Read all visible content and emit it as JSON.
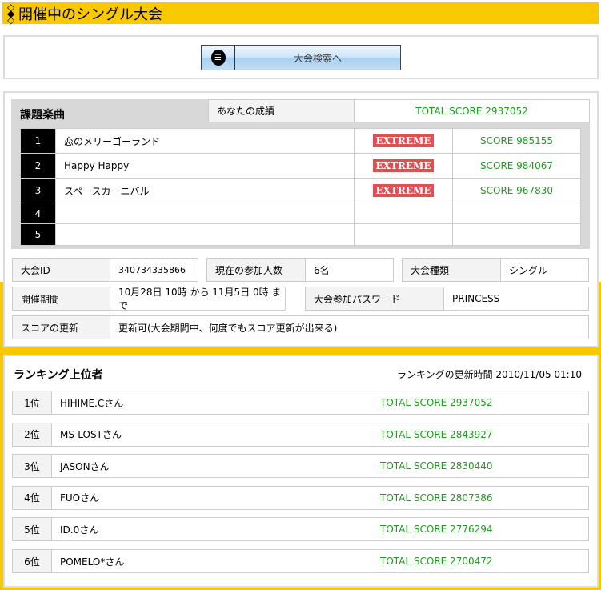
{
  "header": {
    "title": "開催中のシングル大会",
    "icon": "diamond-bullet-icon"
  },
  "search_button": {
    "label": "大会検索へ",
    "icon": "document-icon"
  },
  "songs": {
    "heading": "課題楽曲",
    "your_result_label": "あなたの成績",
    "total_score": "TOTAL SCORE 2937052",
    "rows": [
      {
        "no": "1",
        "title": "恋のメリーゴーランド",
        "difficulty": "EXTREME",
        "score": "SCORE 985155"
      },
      {
        "no": "2",
        "title": "Happy Happy",
        "difficulty": "EXTREME",
        "score": "SCORE 984067"
      },
      {
        "no": "3",
        "title": "スペースカーニバル",
        "difficulty": "EXTREME",
        "score": "SCORE 967830"
      },
      {
        "no": "4",
        "title": "",
        "difficulty": "",
        "score": ""
      },
      {
        "no": "5",
        "title": "",
        "difficulty": "",
        "score": ""
      }
    ]
  },
  "info": {
    "id_label": "大会ID",
    "id": "340734335866",
    "participants_label": "現在の参加人数",
    "participants": "6名",
    "type_label": "大会種類",
    "type": "シングル",
    "period_label": "開催期間",
    "period": "10月28日 10時 から 11月5日 0時 まで",
    "password_label": "大会参加パスワード",
    "password": "PRINCESS",
    "update_label": "スコアの更新",
    "update": "更新可(大会期間中、何度でもスコア更新が出来る)"
  },
  "ranking": {
    "heading": "ランキング上位者",
    "updated": "ランキングの更新時間 2010/11/05 01:10",
    "rows": [
      {
        "rank": "1位",
        "name": "HIHIME.Cさん",
        "score": "TOTAL SCORE 2937052"
      },
      {
        "rank": "2位",
        "name": "MS-LOSTさん",
        "score": "TOTAL SCORE 2843927"
      },
      {
        "rank": "3位",
        "name": "JASONさん",
        "score": "TOTAL SCORE 2830440"
      },
      {
        "rank": "4位",
        "name": "FUOさん",
        "score": "TOTAL SCORE 2807386"
      },
      {
        "rank": "5位",
        "name": "ID.0さん",
        "score": "TOTAL SCORE 2776294"
      },
      {
        "rank": "6位",
        "name": "POMELO*さん",
        "score": "TOTAL SCORE 2700472"
      }
    ]
  },
  "colors": {
    "accent": "#fac800",
    "score": "#229922",
    "extreme": "#e05050"
  }
}
